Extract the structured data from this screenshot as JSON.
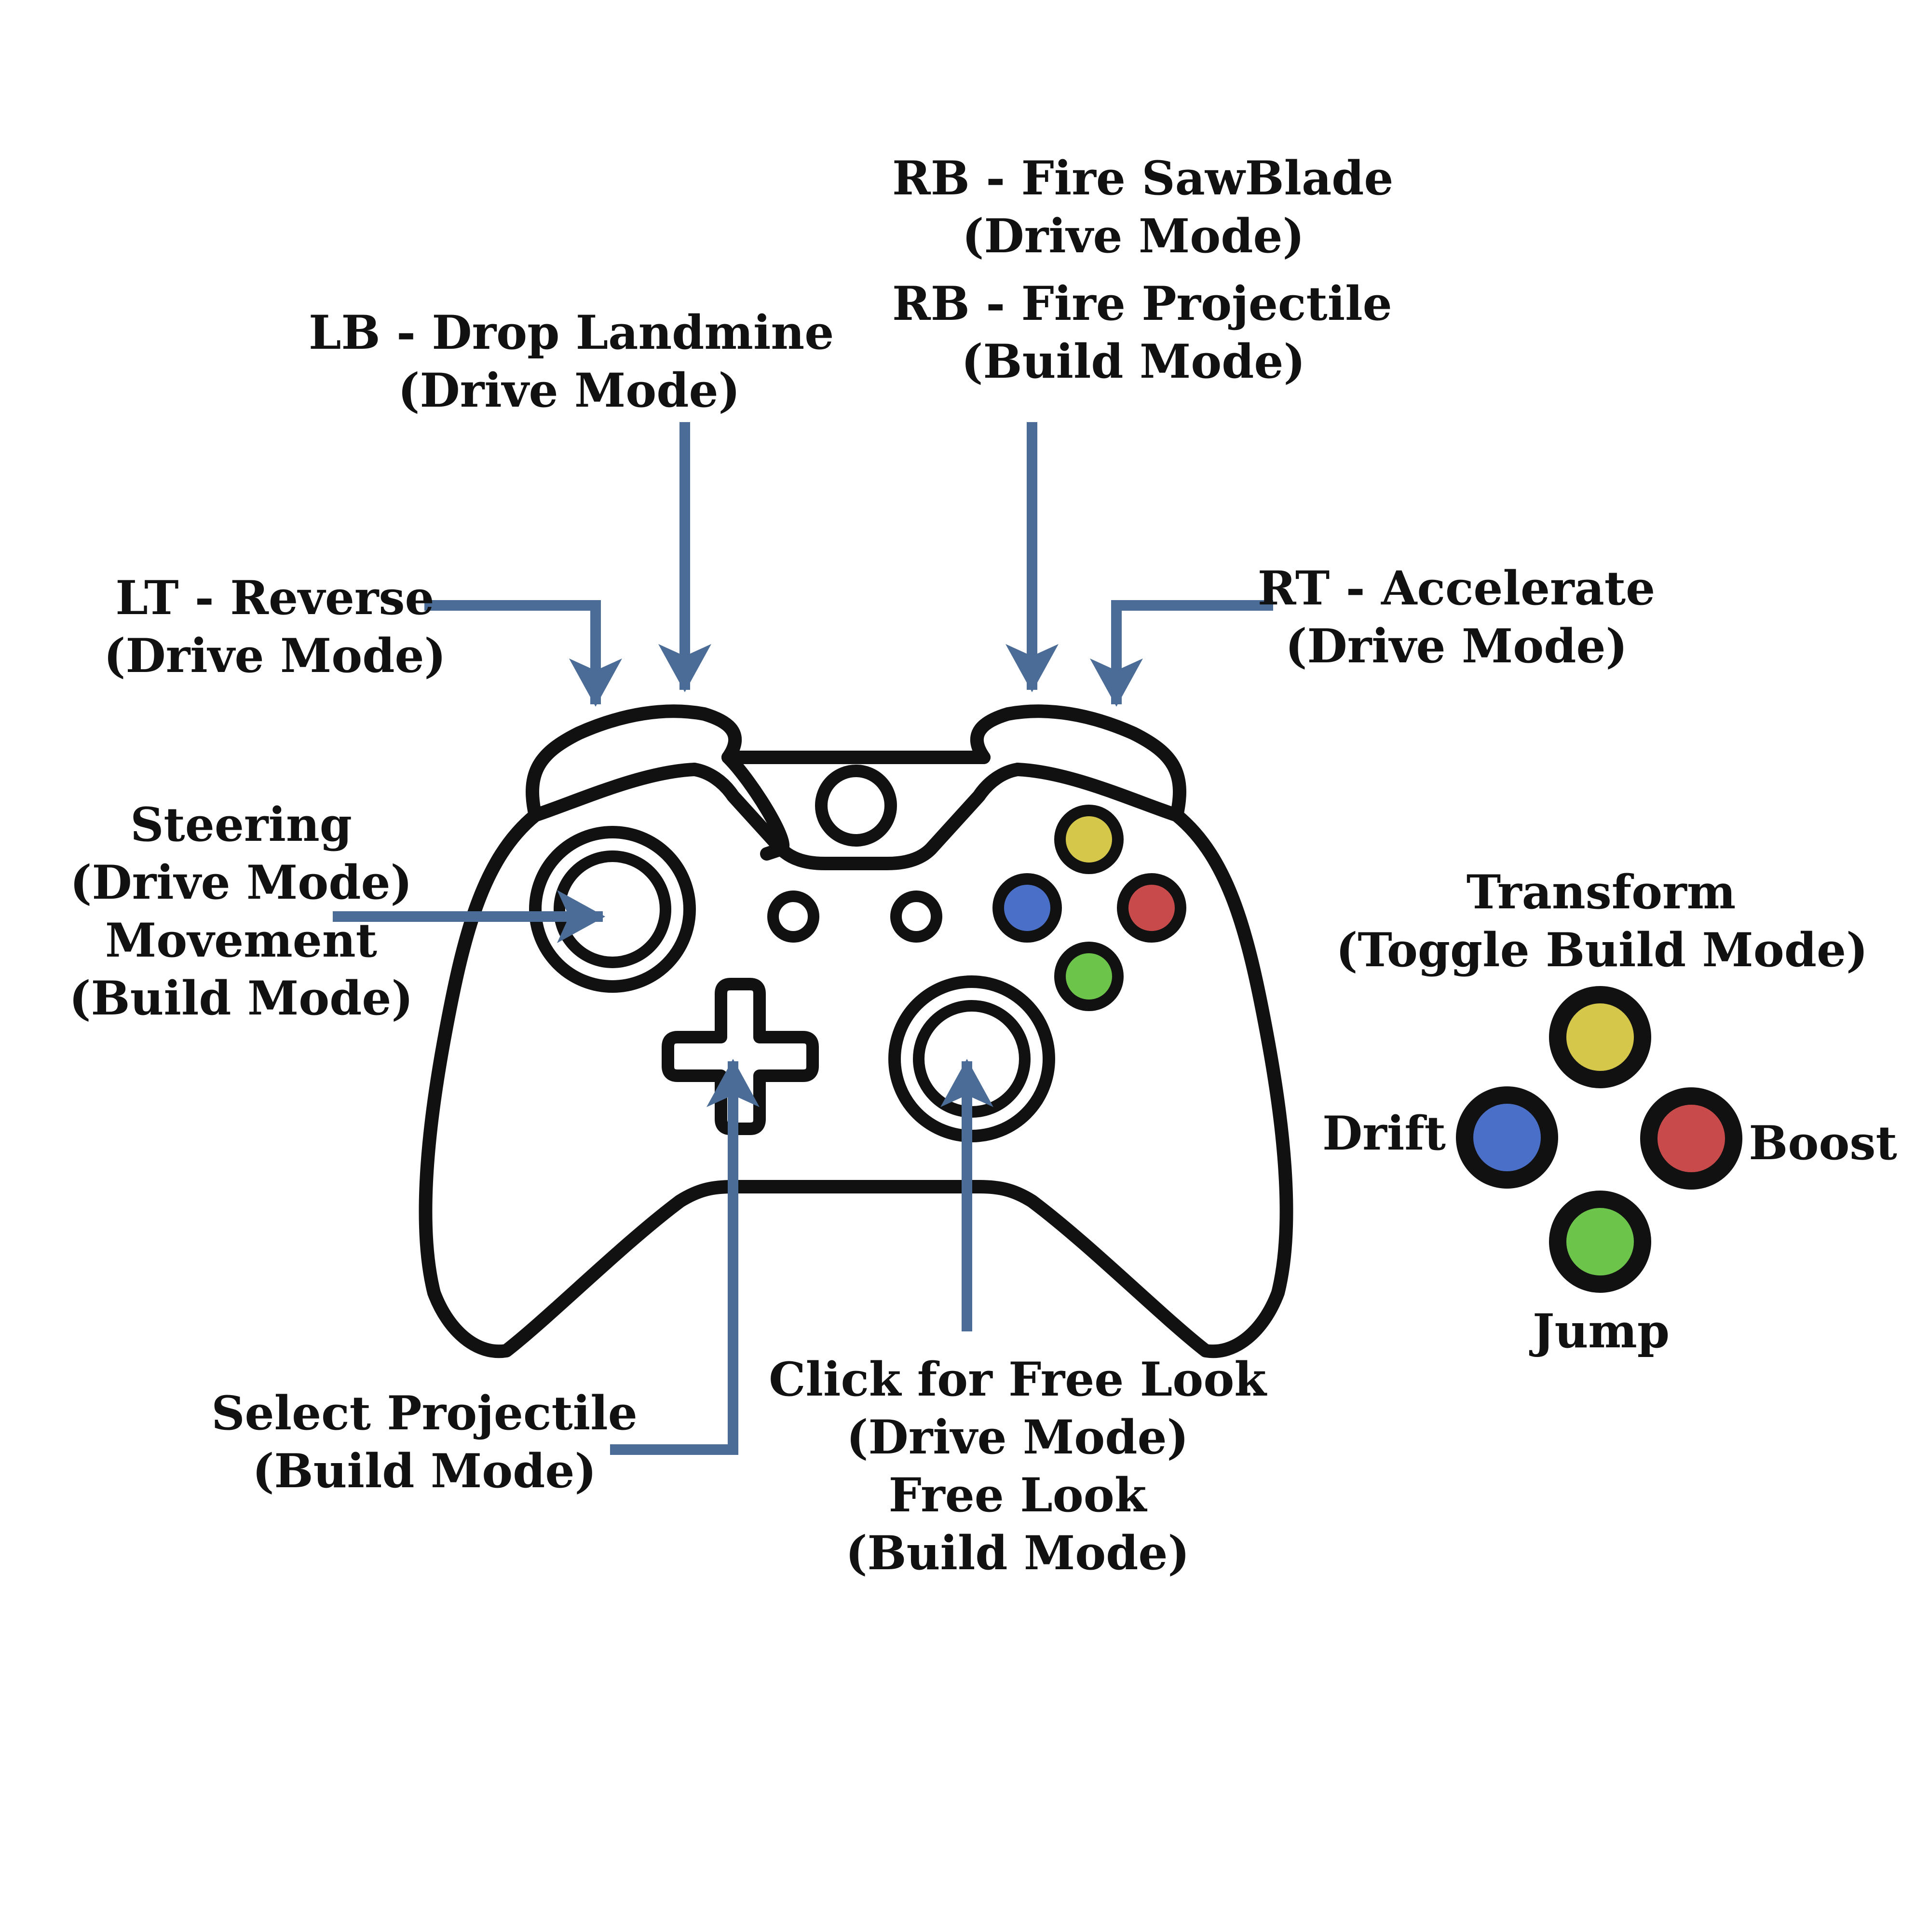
{
  "colors": {
    "arrow": "#4a6c96",
    "outline": "#111111",
    "y_button": "#d4c74a",
    "x_button": "#4a6fc8",
    "b_button": "#c84a4a",
    "a_button": "#6cc44a",
    "background": "#ffffff"
  },
  "labels": {
    "rb": {
      "line1": "RB - Fire SawBlade",
      "line2": "(Drive Mode)",
      "line3": "RB - Fire Projectile",
      "line4": "(Build Mode)"
    },
    "lb": {
      "line1": "LB - Drop Landmine",
      "line2": "(Drive Mode)"
    },
    "lt": {
      "line1": "LT - Reverse",
      "line2": "(Drive Mode)"
    },
    "rt": {
      "line1": "RT - Accelerate",
      "line2": "(Drive Mode)"
    },
    "left_stick": {
      "line1": "Steering",
      "line2": "(Drive Mode)",
      "line3": "Movement",
      "line4": "(Build Mode)"
    },
    "dpad": {
      "line1": "Select Projectile",
      "line2": "(Build Mode)"
    },
    "right_stick": {
      "line1": "Click for Free Look",
      "line2": "(Drive Mode)",
      "line3": "Free Look",
      "line4": "(Build Mode)"
    },
    "y": {
      "line1": "Transform",
      "line2": "(Toggle Build Mode)"
    },
    "x": "Drift",
    "b": "Boost",
    "a": "Jump"
  },
  "icons": {
    "controller": "gamepad-icon",
    "dpad": "dpad-icon",
    "arrow": "arrow-icon"
  }
}
